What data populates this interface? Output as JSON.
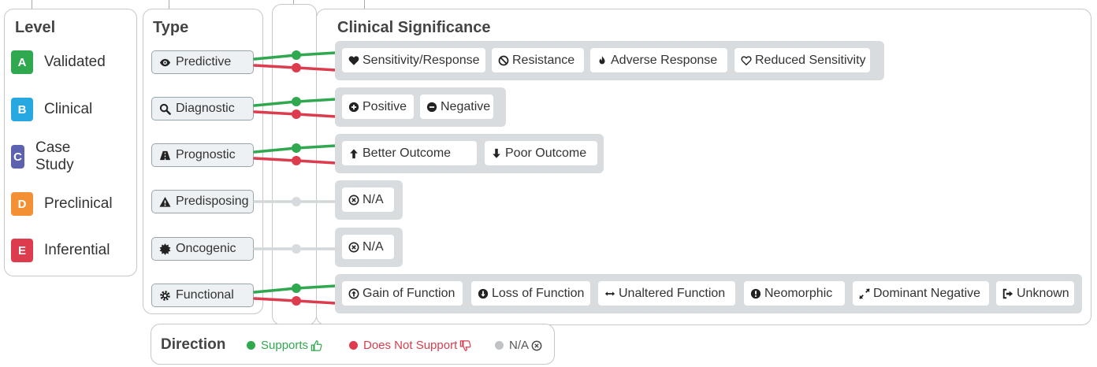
{
  "level": {
    "title": "Level",
    "items": [
      {
        "code": "A",
        "label": "Validated",
        "color": "#2fa84f"
      },
      {
        "code": "B",
        "label": "Clinical",
        "color": "#27a8e0"
      },
      {
        "code": "C",
        "label": "Case Study",
        "color": "#5c62b0"
      },
      {
        "code": "D",
        "label": "Preclinical",
        "color": "#f39033"
      },
      {
        "code": "E",
        "label": "Inferential",
        "color": "#dc3c4e"
      }
    ]
  },
  "type": {
    "title": "Type",
    "items": [
      {
        "label": "Predictive",
        "icon": "eye-icon",
        "direction": "supports-and-not"
      },
      {
        "label": "Diagnostic",
        "icon": "search-icon",
        "direction": "supports-and-not"
      },
      {
        "label": "Prognostic",
        "icon": "road-icon",
        "direction": "supports-and-not"
      },
      {
        "label": "Predisposing",
        "icon": "warning-icon",
        "direction": "na"
      },
      {
        "label": "Oncogenic",
        "icon": "starburst-icon",
        "direction": "na"
      },
      {
        "label": "Functional",
        "icon": "gear-icon",
        "direction": "supports-and-not"
      }
    ]
  },
  "significance": {
    "title": "Clinical Significance",
    "groups": [
      [
        {
          "label": "Sensitivity/Response",
          "icon": "heart-solid-icon"
        },
        {
          "label": "Resistance",
          "icon": "ban-icon"
        },
        {
          "label": "Adverse Response",
          "icon": "fire-icon"
        },
        {
          "label": "Reduced Sensitivity",
          "icon": "heart-outline-icon"
        }
      ],
      [
        {
          "label": "Positive",
          "icon": "plus-circle-icon"
        },
        {
          "label": "Negative",
          "icon": "minus-circle-icon"
        }
      ],
      [
        {
          "label": "Better Outcome",
          "icon": "arrow-up-icon"
        },
        {
          "label": "Poor Outcome",
          "icon": "arrow-down-icon"
        }
      ],
      [
        {
          "label": "N/A",
          "icon": "times-circle-icon"
        }
      ],
      [
        {
          "label": "N/A",
          "icon": "times-circle-icon"
        }
      ],
      [
        {
          "label": "Gain of Function",
          "icon": "arrow-circle-up-icon"
        },
        {
          "label": "Loss of Function",
          "icon": "arrow-circle-down-icon"
        },
        {
          "label": "Unaltered Function",
          "icon": "arrows-h-icon"
        },
        {
          "label": "Neomorphic",
          "icon": "exclamation-circle-icon"
        },
        {
          "label": "Dominant Negative",
          "icon": "expand-icon"
        },
        {
          "label": "Unknown",
          "icon": "sign-out-icon"
        }
      ]
    ]
  },
  "direction": {
    "title": "Direction",
    "supports": {
      "label": "Supports",
      "color": "#2fa84f",
      "icon": "thumbs-up-icon"
    },
    "not_supports": {
      "label": "Does Not Support",
      "color": "#dc3c4e",
      "icon": "thumbs-down-icon"
    },
    "na": {
      "label": "N/A",
      "color": "#bfc3c6",
      "icon": "times-circle-icon"
    }
  }
}
